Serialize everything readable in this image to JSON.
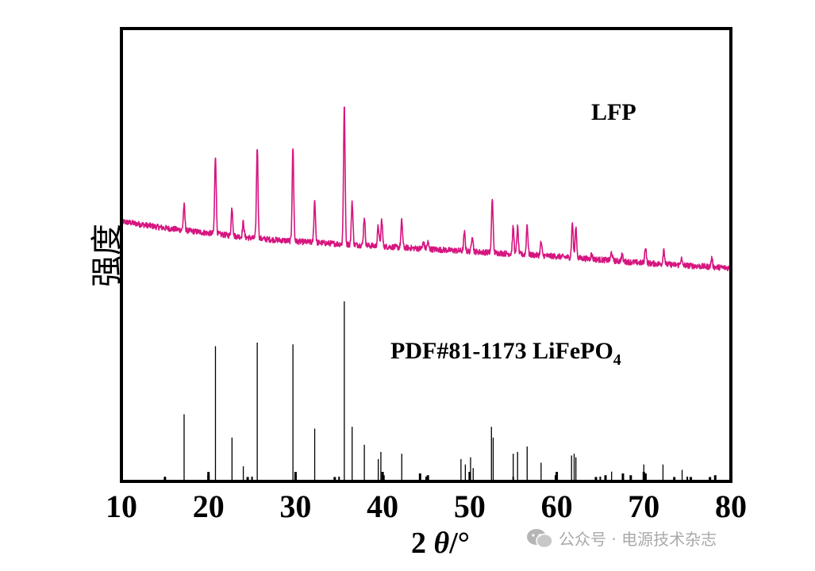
{
  "chart_data": {
    "type": "line",
    "xlabel_main": "2 ",
    "xlabel_theta": "θ",
    "xlabel_unit": "/°",
    "ylabel": "强度",
    "xlim": [
      10,
      80
    ],
    "xticks": [
      "10",
      "20",
      "30",
      "40",
      "50",
      "60",
      "70",
      "80"
    ],
    "grid": false,
    "series": [
      {
        "name": "LFP",
        "color": "#d6157f",
        "baseline": [
          [
            10,
            0.4
          ],
          [
            15,
            0.36
          ],
          [
            20,
            0.33
          ],
          [
            25,
            0.3
          ],
          [
            30,
            0.28
          ],
          [
            40,
            0.25
          ],
          [
            50,
            0.22
          ],
          [
            60,
            0.19
          ],
          [
            70,
            0.15
          ],
          [
            80,
            0.12
          ]
        ],
        "peaks": [
          {
            "x": 17.2,
            "h": 0.15
          },
          {
            "x": 20.8,
            "h": 0.47
          },
          {
            "x": 22.7,
            "h": 0.17
          },
          {
            "x": 24.0,
            "h": 0.09
          },
          {
            "x": 25.6,
            "h": 0.55
          },
          {
            "x": 29.7,
            "h": 0.56
          },
          {
            "x": 32.2,
            "h": 0.25
          },
          {
            "x": 35.6,
            "h": 0.83
          },
          {
            "x": 36.5,
            "h": 0.26
          },
          {
            "x": 37.9,
            "h": 0.17
          },
          {
            "x": 39.5,
            "h": 0.12
          },
          {
            "x": 39.9,
            "h": 0.16
          },
          {
            "x": 42.2,
            "h": 0.16
          },
          {
            "x": 44.7,
            "h": 0.04
          },
          {
            "x": 45.2,
            "h": 0.04
          },
          {
            "x": 49.4,
            "h": 0.11
          },
          {
            "x": 50.3,
            "h": 0.1
          },
          {
            "x": 52.6,
            "h": 0.33
          },
          {
            "x": 55.0,
            "h": 0.16
          },
          {
            "x": 55.5,
            "h": 0.16
          },
          {
            "x": 56.6,
            "h": 0.18
          },
          {
            "x": 58.2,
            "h": 0.08
          },
          {
            "x": 61.8,
            "h": 0.21
          },
          {
            "x": 62.2,
            "h": 0.18
          },
          {
            "x": 64.0,
            "h": 0.03
          },
          {
            "x": 66.3,
            "h": 0.05
          },
          {
            "x": 67.5,
            "h": 0.04
          },
          {
            "x": 70.2,
            "h": 0.1
          },
          {
            "x": 72.3,
            "h": 0.09
          },
          {
            "x": 74.3,
            "h": 0.04
          },
          {
            "x": 77.8,
            "h": 0.05
          }
        ]
      },
      {
        "name": "PDF#81-1173 LiFePO",
        "name_sub": "4",
        "color": "#000000",
        "sticks": [
          [
            15.0,
            0.02
          ],
          [
            17.2,
            0.37
          ],
          [
            20.0,
            0.03
          ],
          [
            20.8,
            0.75
          ],
          [
            22.7,
            0.24
          ],
          [
            24.0,
            0.08
          ],
          [
            24.5,
            0.02
          ],
          [
            25.6,
            0.77
          ],
          [
            29.7,
            0.76
          ],
          [
            30.0,
            0.03
          ],
          [
            32.2,
            0.29
          ],
          [
            34.5,
            0.02
          ],
          [
            35.6,
            1.0
          ],
          [
            36.5,
            0.3
          ],
          [
            37.9,
            0.2
          ],
          [
            39.5,
            0.12
          ],
          [
            39.8,
            0.16
          ],
          [
            40.1,
            0.03
          ],
          [
            42.2,
            0.15
          ],
          [
            44.3,
            0.04
          ],
          [
            45.2,
            0.03
          ],
          [
            49.0,
            0.12
          ],
          [
            49.5,
            0.09
          ],
          [
            50.1,
            0.13
          ],
          [
            50.4,
            0.07
          ],
          [
            52.5,
            0.3
          ],
          [
            52.7,
            0.24
          ],
          [
            55.0,
            0.15
          ],
          [
            55.5,
            0.16
          ],
          [
            56.6,
            0.19
          ],
          [
            58.2,
            0.1
          ],
          [
            59.9,
            0.03
          ],
          [
            61.7,
            0.14
          ],
          [
            62.0,
            0.15
          ],
          [
            62.2,
            0.13
          ],
          [
            64.5,
            0.02
          ],
          [
            65.6,
            0.03
          ],
          [
            66.3,
            0.05
          ],
          [
            67.6,
            0.04
          ],
          [
            68.5,
            0.03
          ],
          [
            70.0,
            0.09
          ],
          [
            70.2,
            0.04
          ],
          [
            72.2,
            0.09
          ],
          [
            73.5,
            0.02
          ],
          [
            74.4,
            0.06
          ],
          [
            75.4,
            0.02
          ],
          [
            77.6,
            0.02
          ],
          [
            78.2,
            0.03
          ]
        ]
      }
    ],
    "annotations": [
      {
        "text": "LFP"
      },
      {
        "text": "PDF#81-1173 LiFePO",
        "sub": "4"
      }
    ]
  },
  "watermark": {
    "icon": "wechat-icon",
    "text": "公众号 · 电源技术杂志",
    "color": "#a9a9a9"
  }
}
